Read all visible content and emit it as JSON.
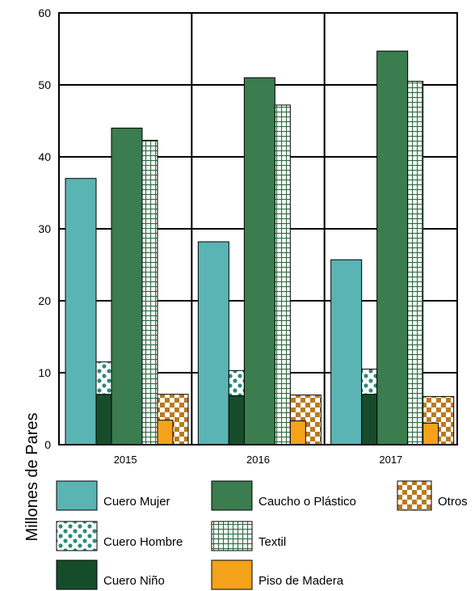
{
  "chart_data": {
    "type": "bar",
    "ylabel": "Millones de Pares",
    "xlabel": "",
    "ylim": [
      0,
      60
    ],
    "yticks": [
      0,
      10,
      20,
      30,
      40,
      50,
      60
    ],
    "grid": true,
    "legend_position": "bottom",
    "categories": [
      "2015",
      "2016",
      "2017"
    ],
    "series": [
      {
        "name": "Cuero Mujer",
        "color": "#5ab4b4",
        "pattern": "solid",
        "values": [
          37.0,
          28.2,
          25.7
        ]
      },
      {
        "name": "Cuero Hombre",
        "color": "#2e8b7a",
        "pattern": "dots",
        "values": [
          11.5,
          10.3,
          10.5
        ],
        "stacked_on": "Cuero Niño"
      },
      {
        "name": "Cuero Niño",
        "color": "#154d2b",
        "pattern": "solid",
        "values": [
          7.0,
          6.8,
          7.0
        ]
      },
      {
        "name": "Caucho o Plástico",
        "color": "#3b7d4f",
        "pattern": "solid",
        "values": [
          44.0,
          51.0,
          54.7
        ]
      },
      {
        "name": "Textil",
        "color": "#2e6b3f",
        "pattern": "grid",
        "values": [
          42.3,
          47.2,
          50.5
        ]
      },
      {
        "name": "Otros",
        "color": "#b87a1e",
        "pattern": "checker",
        "values": [
          7.0,
          6.9,
          6.7
        ]
      },
      {
        "name": "Piso de Madera",
        "color": "#f5a21b",
        "pattern": "solid",
        "values": [
          3.4,
          3.3,
          3.0
        ],
        "stacked_on": "Otros"
      }
    ],
    "legend": [
      [
        "Cuero Mujer",
        "Caucho o Plástico",
        "Otros"
      ],
      [
        "Cuero Hombre",
        "Textil"
      ],
      [
        "Cuero Niño",
        "Piso de Madera"
      ]
    ]
  }
}
